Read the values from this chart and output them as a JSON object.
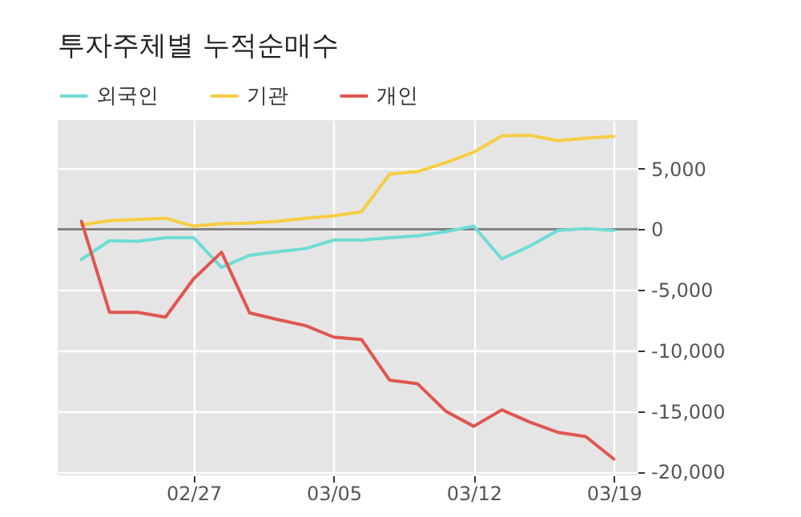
{
  "chart_data": {
    "type": "line",
    "title": "투자주체별 누적순매수",
    "categories": [
      null,
      null,
      null,
      null,
      "02/27",
      null,
      null,
      null,
      null,
      "03/05",
      null,
      null,
      null,
      null,
      "03/12",
      null,
      null,
      null,
      null,
      "03/19"
    ],
    "series": [
      {
        "name": "외국인",
        "color": "#6fdcd6",
        "values": [
          -2500,
          -950,
          -1000,
          -700,
          -700,
          -3150,
          -2150,
          -1850,
          -1600,
          -900,
          -900,
          -700,
          -550,
          -200,
          250,
          -2450,
          -1400,
          -100,
          50,
          -100
        ]
      },
      {
        "name": "기관",
        "color": "#f7cd42",
        "values": [
          350,
          700,
          800,
          900,
          250,
          450,
          500,
          650,
          900,
          1100,
          1450,
          4550,
          4750,
          5500,
          6350,
          7700,
          7750,
          7300,
          7500,
          7650
        ]
      },
      {
        "name": "개인",
        "color": "#e05650",
        "values": [
          650,
          -6850,
          -6850,
          -7250,
          -4100,
          -1900,
          -6900,
          -7450,
          -7950,
          -8900,
          -9100,
          -12450,
          -12750,
          -15000,
          -16250,
          -14900,
          -15900,
          -16750,
          -17100,
          -18950
        ]
      }
    ],
    "ylim": [
      -20300,
      9000
    ],
    "yticks": [
      {
        "value": -20000,
        "label": "-20,000"
      },
      {
        "value": -15000,
        "label": "-15,000"
      },
      {
        "value": -10000,
        "label": "-10,000"
      },
      {
        "value": -5000,
        "label": "-5,000"
      },
      0,
      {
        "value": 5000,
        "label": "5,000"
      }
    ],
    "ref_lines": [
      {
        "axis": "y",
        "value": 0,
        "color": "#808080"
      }
    ],
    "grid": true,
    "legend": "top left"
  }
}
